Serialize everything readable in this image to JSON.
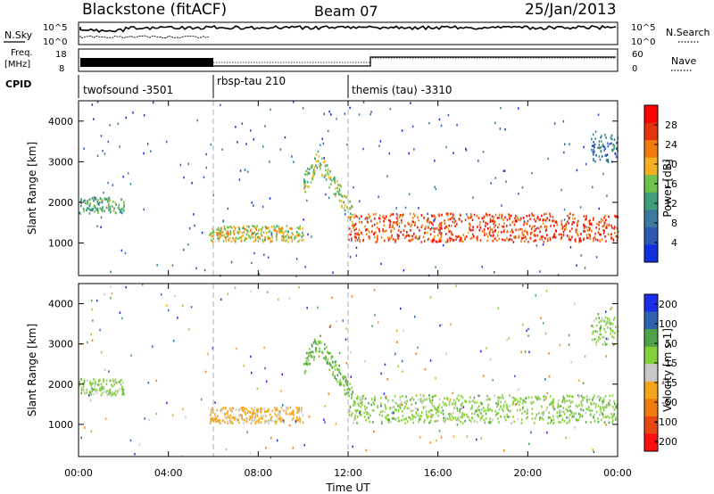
{
  "header": {
    "title": "Blackstone (fitACF)",
    "beam": "Beam 07",
    "date": "25/Jan/2013"
  },
  "top_panels": {
    "nsky_label": "N.Sky",
    "nsearch_label": "N.Search",
    "noise_ticks_left": [
      "10^5",
      "10^0"
    ],
    "noise_ticks_right": [
      "10^5",
      "10^0"
    ],
    "freq_label": "Freq.",
    "freq_unit": "[MHz]",
    "freq_ticks": [
      "18",
      "8"
    ],
    "nave_label": "Nave",
    "nave_ticks": [
      "60",
      "0"
    ],
    "cpid_label": "CPID",
    "cpid_segments": [
      {
        "name": "twofsound -3501",
        "start_hour": 0
      },
      {
        "name": "rbsp-tau 210",
        "start_hour": 6
      },
      {
        "name": "themis (tau) -3310",
        "start_hour": 12
      }
    ]
  },
  "colors": {
    "power": [
      "#1030e0",
      "#2f58b4",
      "#3b7a9c",
      "#3e9f78",
      "#6cc24a",
      "#f5b021",
      "#f27a0c",
      "#e5330b",
      "#ff0000"
    ],
    "velocity": [
      "#1a2ee8",
      "#2e64b0",
      "#4ea24a",
      "#84d03a",
      "#c8c8c8",
      "#f4a61a",
      "#f07c10",
      "#e84612",
      "#ff1010"
    ]
  },
  "chart_data": [
    {
      "type": "heatmap",
      "title": "Power",
      "ylabel": "Slant Range [km]",
      "xlabel": "Time UT",
      "x_ticks": [
        "00:00",
        "04:00",
        "08:00",
        "12:00",
        "16:00",
        "20:00",
        "00:00"
      ],
      "xlim_hours": [
        0,
        24
      ],
      "ylim": [
        200,
        4500
      ],
      "y_ticks": [
        1000,
        2000,
        3000,
        4000
      ],
      "colorbar": {
        "label": "Power [dB]",
        "ticks": [
          "4",
          "8",
          "12",
          "16",
          "20",
          "24",
          "28"
        ],
        "range": [
          0,
          32
        ]
      },
      "cpid_boundaries_hours": [
        6,
        12
      ],
      "features": [
        {
          "label": "patch",
          "t_start": 0.0,
          "t_end": 2.0,
          "range_start": 1750,
          "range_end": 2150,
          "value": 14
        },
        {
          "label": "band",
          "t_start": 5.8,
          "t_end": 10.0,
          "range_start": 1050,
          "range_end": 1450,
          "value": 18
        },
        {
          "label": "arc",
          "t_start": 10.0,
          "t_end": 12.2,
          "range_start": 1700,
          "range_end": 3300,
          "value": 16
        },
        {
          "label": "band",
          "t_start": 12.0,
          "t_end": 24.0,
          "range_start": 1050,
          "range_end": 1750,
          "value": 26
        },
        {
          "label": "patch",
          "t_start": 22.8,
          "t_end": 24.0,
          "range_start": 3000,
          "range_end": 3700,
          "value": 8
        }
      ]
    },
    {
      "type": "heatmap",
      "title": "Velocity",
      "ylabel": "Slant Range [km]",
      "xlabel": "Time UT",
      "x_ticks": [
        "00:00",
        "04:00",
        "08:00",
        "12:00",
        "16:00",
        "20:00",
        "00:00"
      ],
      "xlim_hours": [
        0,
        24
      ],
      "ylim": [
        200,
        4500
      ],
      "y_ticks": [
        1000,
        2000,
        3000,
        4000
      ],
      "colorbar": {
        "label": "Velocity [m s-1]",
        "ticks": [
          "200",
          "100",
          "50",
          "15",
          "-15",
          "-50",
          "-100",
          "-200"
        ]
      },
      "cpid_boundaries_hours": [
        6,
        12
      ],
      "features": [
        {
          "label": "patch",
          "t_start": 0.0,
          "t_end": 2.0,
          "range_start": 1750,
          "range_end": 2150,
          "value": 0
        },
        {
          "label": "band",
          "t_start": 5.8,
          "t_end": 10.0,
          "range_start": 1050,
          "range_end": 1450,
          "value": -60
        },
        {
          "label": "arc",
          "t_start": 10.0,
          "t_end": 12.2,
          "range_start": 1700,
          "range_end": 3300,
          "value": 20
        },
        {
          "label": "band",
          "t_start": 12.0,
          "t_end": 24.0,
          "range_start": 1050,
          "range_end": 1750,
          "value": 0
        },
        {
          "label": "patch",
          "t_start": 22.8,
          "t_end": 24.0,
          "range_start": 3000,
          "range_end": 3700,
          "value": 0
        }
      ]
    }
  ]
}
